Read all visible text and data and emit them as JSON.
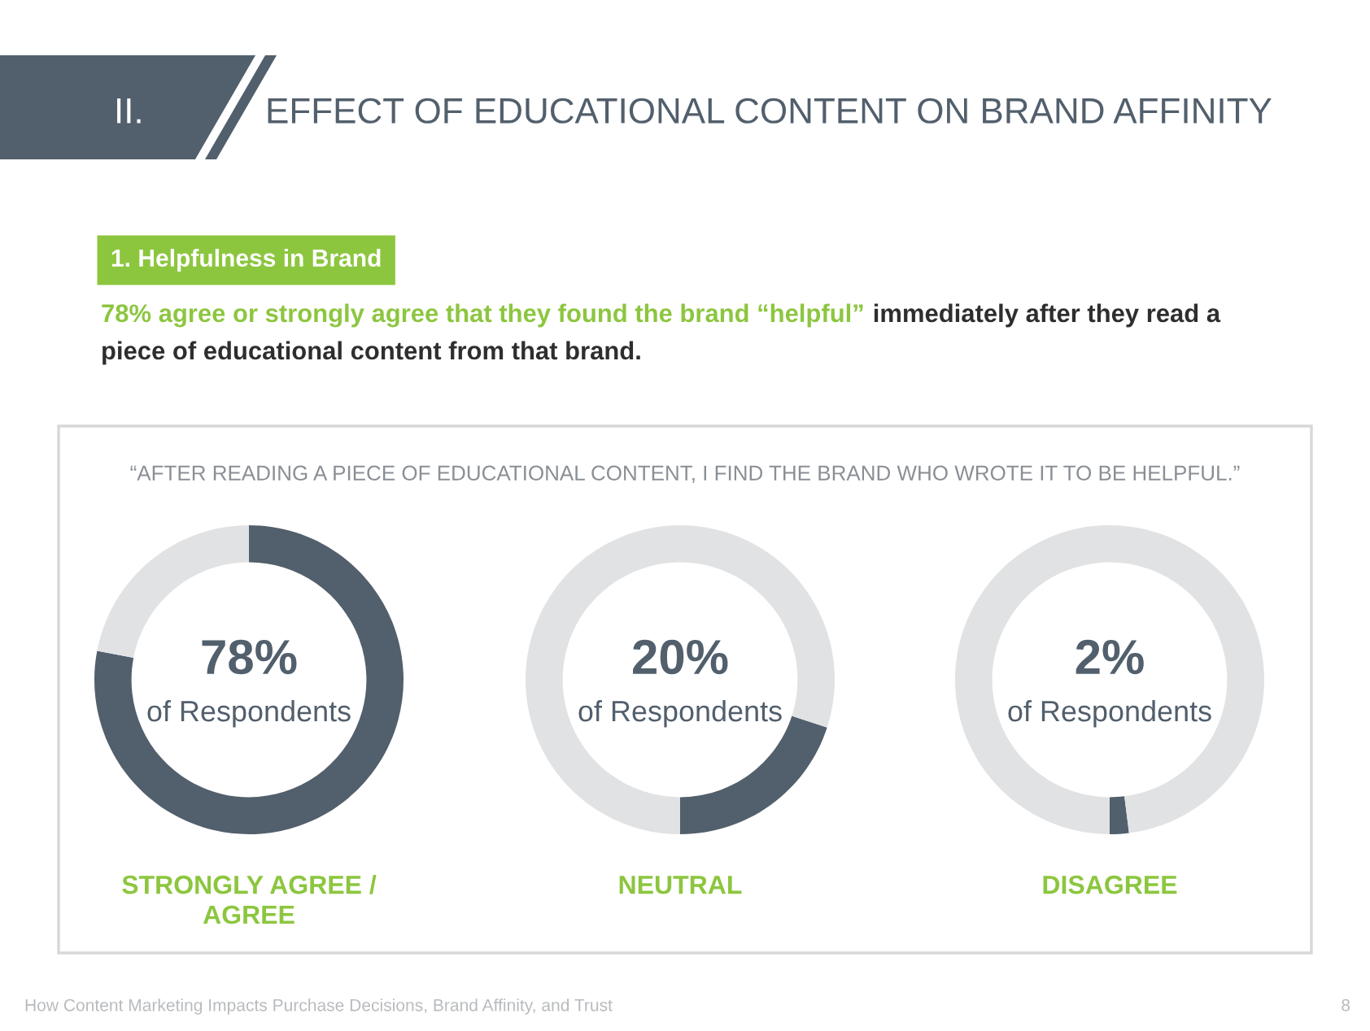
{
  "chart_data": [
    {
      "type": "other",
      "title": "EFFECT OF EDUCATIONAL CONTENT ON BRAND AFFINITY",
      "annotations": [
        "II.",
        "1. Helpfulness in Brand",
        "78% agree or strongly agree that they found the brand “helpful”",
        "immediately after they read a",
        "piece of educational content from that brand.",
        "“AFTER READING A PIECE OF EDUCATIONAL CONTENT, I FIND THE BRAND WHO WROTE IT TO BE HELPFUL.”",
        "How Content Marketing Impacts Purchase Decisions, Brand Affinity, and Trust",
        "8"
      ]
    },
    {
      "type": "donut",
      "categories": [
        "STRONGLY AGREE / AGREE",
        null
      ],
      "values": [
        78,
        22
      ],
      "colors": [
        "#525f6c",
        "#e1e2e4"
      ],
      "annotations": [
        "78%",
        "of Respondents"
      ]
    },
    {
      "type": "donut",
      "categories": [
        "NEUTRAL",
        null
      ],
      "values": [
        20,
        80
      ],
      "colors": [
        "#525f6c",
        "#e1e2e4"
      ],
      "annotations": [
        "20%",
        "of Respondents"
      ]
    },
    {
      "type": "donut",
      "categories": [
        "DISAGREE",
        null
      ],
      "values": [
        2,
        98
      ],
      "colors": [
        "#525f6c",
        "#e1e2e4"
      ],
      "annotations": [
        "2%",
        "of Respondents"
      ]
    }
  ]
}
